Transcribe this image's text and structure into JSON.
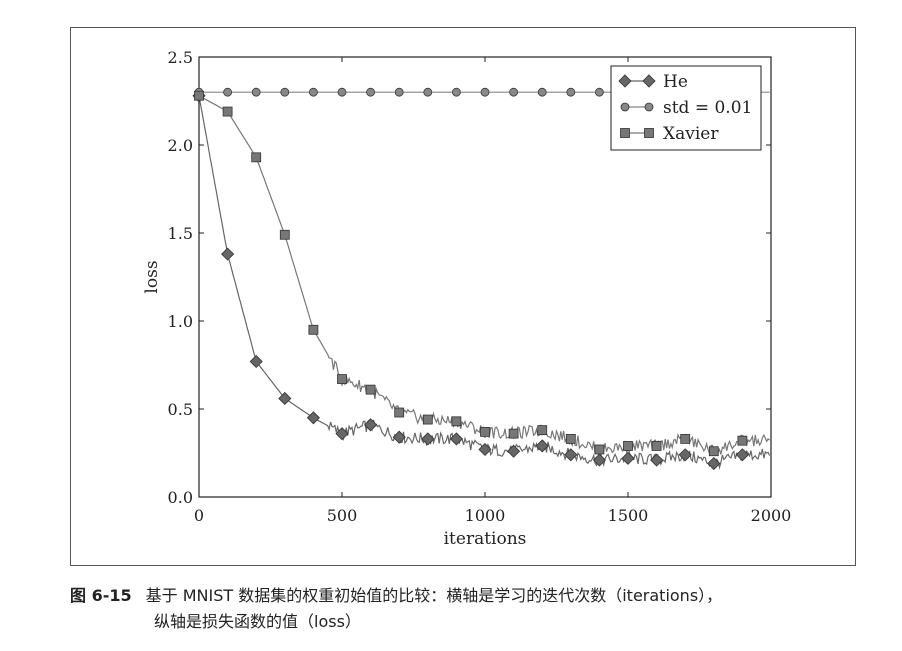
{
  "chart_data": {
    "type": "line",
    "xlabel": "iterations",
    "ylabel": "loss",
    "xlim": [
      0,
      2000
    ],
    "ylim": [
      0,
      2.5
    ],
    "xticks": [
      "0",
      "500",
      "1000",
      "1500",
      "2000"
    ],
    "yticks": [
      "0.0",
      "0.5",
      "1.0",
      "1.5",
      "2.0",
      "2.5"
    ],
    "legend_position": "top-right",
    "grid": false,
    "series": [
      {
        "name": "He",
        "marker": "diamond",
        "color": "#666666",
        "x": [
          0,
          100,
          200,
          300,
          400,
          500,
          600,
          700,
          800,
          900,
          1000,
          1100,
          1200,
          1300,
          1400,
          1500,
          1600,
          1700,
          1800,
          1900
        ],
        "y": [
          2.28,
          1.38,
          0.77,
          0.56,
          0.45,
          0.36,
          0.41,
          0.34,
          0.33,
          0.33,
          0.27,
          0.26,
          0.29,
          0.24,
          0.21,
          0.22,
          0.21,
          0.24,
          0.19,
          0.24
        ]
      },
      {
        "name": "std = 0.01",
        "marker": "circle",
        "color": "#888888",
        "x": [
          0,
          100,
          200,
          300,
          400,
          500,
          600,
          700,
          800,
          900,
          1000,
          1100,
          1200,
          1300,
          1400,
          1500,
          1600,
          1700,
          1800,
          1900
        ],
        "y": [
          2.3,
          2.3,
          2.3,
          2.3,
          2.3,
          2.3,
          2.3,
          2.3,
          2.3,
          2.3,
          2.3,
          2.3,
          2.3,
          2.3,
          2.3,
          2.3,
          2.3,
          2.3,
          2.3,
          2.3
        ]
      },
      {
        "name": "Xavier",
        "marker": "square",
        "color": "#777777",
        "x": [
          0,
          100,
          200,
          300,
          400,
          500,
          600,
          700,
          800,
          900,
          1000,
          1100,
          1200,
          1300,
          1400,
          1500,
          1600,
          1700,
          1800,
          1900
        ],
        "y": [
          2.28,
          2.19,
          1.93,
          1.49,
          0.95,
          0.67,
          0.61,
          0.48,
          0.44,
          0.43,
          0.37,
          0.36,
          0.38,
          0.33,
          0.27,
          0.29,
          0.29,
          0.33,
          0.26,
          0.32
        ]
      }
    ]
  },
  "caption": {
    "figure_number": "图 6-15",
    "line1": "基于 MNIST 数据集的权重初始值的比较：横轴是学习的迭代次数（iterations），",
    "line2": "纵轴是损失函数的值（loss）"
  }
}
